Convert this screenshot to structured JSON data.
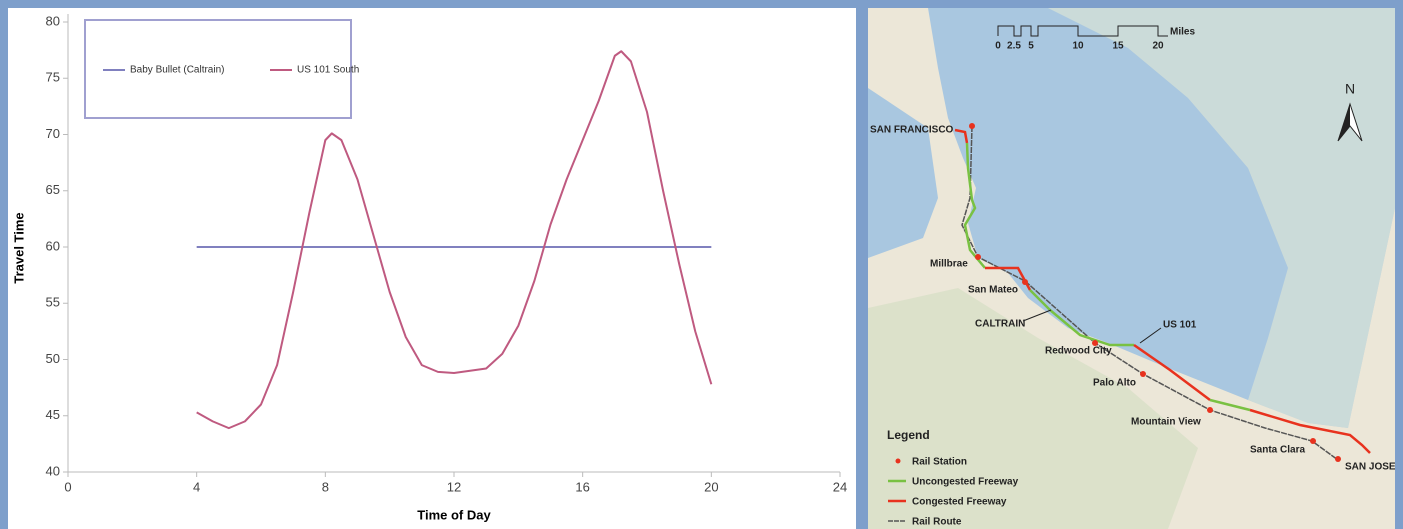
{
  "chart_data": {
    "type": "line",
    "x_label": "Time of Day",
    "y_label": "Travel Time",
    "xlim": [
      0,
      24
    ],
    "xticks": [
      0,
      4,
      8,
      12,
      16,
      20,
      24
    ],
    "ylim": [
      40,
      80
    ],
    "yticks": [
      40,
      45,
      50,
      55,
      60,
      65,
      70,
      75,
      80
    ],
    "series": [
      {
        "name": "Baby Bullet (Caltrain)",
        "color": "#8080bf",
        "x": [
          4,
          20
        ],
        "values": [
          60,
          60
        ]
      },
      {
        "name": "US 101 South",
        "color": "#bf5a80",
        "x": [
          4,
          4.5,
          5,
          5.5,
          6,
          6.5,
          7,
          7.5,
          8,
          8.2,
          8.5,
          9,
          9.5,
          10,
          10.5,
          11,
          11.5,
          12,
          13,
          13.5,
          14,
          14.5,
          15,
          15.5,
          16,
          16.5,
          17,
          17.2,
          17.5,
          18,
          18.5,
          19,
          19.5,
          20
        ],
        "values": [
          45.3,
          44.5,
          43.9,
          44.5,
          46,
          49.5,
          56,
          63,
          69.5,
          70.1,
          69.5,
          66,
          61,
          56,
          52,
          49.5,
          48.9,
          48.8,
          49.2,
          50.5,
          53,
          57,
          62,
          66,
          69.5,
          73,
          77,
          77.4,
          76.5,
          72,
          65,
          58.5,
          52.5,
          47.8
        ]
      }
    ]
  },
  "map": {
    "scale_labels": [
      "0",
      "2.5",
      "5",
      "10",
      "15",
      "20"
    ],
    "scale_unit": "Miles",
    "north": "N",
    "places": [
      "SAN FRANCISCO",
      "Millbrae",
      "San Mateo",
      "CALTRAIN",
      "Redwood City",
      "US 101",
      "Palo Alto",
      "Mountain View",
      "Santa Clara",
      "SAN JOSE"
    ],
    "legend_title": "Legend",
    "legend_items": [
      "Rail Station",
      "Uncongested Freeway",
      "Congested Freeway",
      "Rail Route"
    ]
  }
}
